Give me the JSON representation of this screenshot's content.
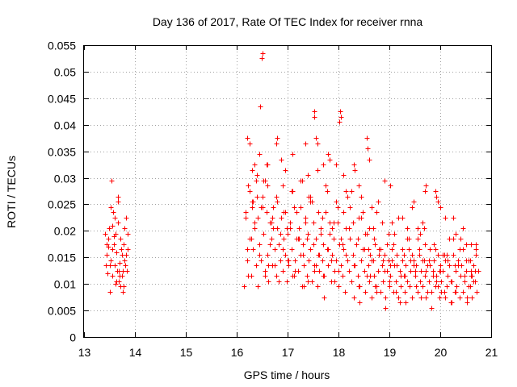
{
  "chart_data": {
    "type": "scatter",
    "title": "Day 136 of 2017, Rate Of TEC Index for receiver rnna",
    "xlabel": "GPS time / hours",
    "ylabel": "ROTI / TECUs",
    "xlim": [
      13,
      21
    ],
    "ylim": [
      0,
      0.055
    ],
    "xticks": [
      13,
      14,
      15,
      16,
      17,
      18,
      19,
      20,
      21
    ],
    "xtick_labels": [
      "13",
      "14",
      "15",
      "16",
      "17",
      "18",
      "19",
      "20",
      "21"
    ],
    "yticks": [
      0,
      0.005,
      0.01,
      0.015,
      0.02,
      0.025,
      0.03,
      0.035,
      0.04,
      0.045,
      0.05,
      0.055
    ],
    "ytick_labels": [
      "0",
      "0.005",
      "0.01",
      "0.015",
      "0.02",
      "0.025",
      "0.03",
      "0.035",
      "0.04",
      "0.045",
      "0.05",
      "0.055"
    ],
    "grid": true,
    "marker": "+",
    "color": "#ff0000",
    "series": [
      {
        "name": "rnna",
        "x": [
          13.42,
          13.44,
          13.46,
          13.48,
          13.5,
          13.52,
          13.54,
          13.55,
          13.56,
          13.58,
          13.6,
          13.61,
          13.62,
          13.64,
          13.65,
          13.66,
          13.68,
          13.7,
          13.71,
          13.72,
          13.74,
          13.75,
          13.76,
          13.78,
          13.8,
          13.82,
          13.84,
          13.86,
          13.45,
          13.53,
          13.57,
          13.63,
          13.67,
          13.73,
          13.77,
          13.81,
          13.85,
          13.49,
          13.59,
          13.69,
          13.79,
          13.47,
          13.51,
          13.55,
          13.62,
          13.7,
          13.76,
          13.83,
          13.43,
          13.66,
          16.15,
          16.18,
          16.2,
          16.22,
          16.25,
          16.28,
          16.3,
          16.32,
          16.35,
          16.38,
          16.4,
          16.42,
          16.45,
          16.48,
          16.5,
          16.52,
          16.55,
          16.58,
          16.6,
          16.62,
          16.65,
          16.68,
          16.7,
          16.72,
          16.75,
          16.78,
          16.8,
          16.82,
          16.85,
          16.88,
          16.9,
          16.92,
          16.95,
          16.98,
          17.0,
          17.02,
          17.05,
          17.08,
          17.1,
          17.12,
          17.15,
          17.18,
          17.2,
          17.22,
          17.25,
          17.28,
          17.3,
          17.32,
          17.35,
          17.38,
          17.4,
          17.42,
          17.45,
          17.48,
          17.5,
          17.52,
          17.55,
          17.58,
          17.6,
          17.62,
          17.65,
          17.68,
          17.7,
          17.72,
          17.75,
          17.78,
          17.8,
          17.82,
          17.85,
          17.88,
          17.9,
          17.92,
          17.95,
          17.98,
          18.0,
          18.02,
          18.05,
          18.08,
          18.1,
          18.12,
          18.15,
          18.18,
          18.2,
          18.22,
          18.25,
          18.28,
          18.3,
          18.32,
          18.35,
          18.38,
          18.4,
          18.42,
          18.45,
          18.48,
          18.5,
          18.52,
          18.55,
          18.58,
          18.6,
          18.62,
          18.65,
          18.68,
          18.7,
          18.72,
          18.75,
          18.78,
          18.8,
          18.82,
          18.85,
          18.88,
          18.9,
          18.92,
          18.95,
          18.98,
          19.0,
          19.02,
          19.05,
          19.08,
          19.1,
          19.12,
          19.15,
          19.18,
          19.2,
          19.22,
          19.25,
          19.28,
          19.3,
          19.32,
          19.35,
          19.38,
          19.4,
          19.42,
          19.45,
          19.48,
          19.5,
          19.52,
          19.55,
          19.58,
          19.6,
          19.62,
          19.65,
          19.68,
          19.7,
          19.72,
          19.75,
          19.78,
          19.8,
          19.82,
          19.85,
          19.88,
          19.9,
          19.92,
          19.95,
          19.98,
          20.0,
          20.02,
          20.05,
          20.08,
          20.1,
          20.12,
          20.15,
          20.18,
          20.2,
          20.22,
          20.25,
          20.28,
          20.3,
          20.32,
          20.35,
          20.38,
          20.4,
          20.42,
          20.45,
          20.48,
          20.5,
          20.52,
          20.55,
          20.58,
          20.6,
          20.62,
          20.65,
          20.68,
          20.7,
          20.72,
          20.75,
          16.2,
          16.25,
          16.3,
          16.35,
          16.4,
          16.45,
          16.5,
          16.55,
          16.6,
          16.65,
          16.7,
          16.75,
          16.8,
          16.85,
          16.9,
          16.95,
          17.0,
          17.05,
          17.1,
          17.15,
          17.2,
          17.25,
          17.3,
          17.35,
          17.4,
          17.45,
          17.5,
          17.55,
          17.6,
          17.65,
          17.7,
          17.75,
          17.8,
          17.85,
          17.9,
          17.95,
          18.0,
          18.05,
          18.1,
          18.15,
          18.2,
          18.25,
          18.3,
          18.35,
          18.4,
          18.45,
          18.5,
          18.55,
          18.6,
          18.65,
          18.7,
          18.75,
          18.8,
          18.85,
          18.9,
          18.95,
          19.0,
          19.05,
          19.1,
          19.15,
          19.2,
          19.25,
          19.3,
          19.35,
          19.4,
          19.45,
          19.5,
          19.55,
          19.6,
          19.65,
          19.7,
          19.75,
          19.8,
          19.85,
          19.9,
          19.95,
          20.0,
          20.05,
          20.1,
          20.15,
          20.2,
          20.25,
          20.3,
          20.35,
          20.4,
          20.45,
          20.5,
          20.55,
          20.6,
          20.65,
          20.7,
          16.22,
          16.32,
          16.42,
          16.52,
          16.62,
          16.72,
          16.82,
          16.92,
          17.02,
          17.12,
          17.22,
          17.32,
          17.42,
          17.52,
          17.62,
          17.72,
          17.82,
          17.92,
          18.02,
          18.12,
          18.22,
          18.32,
          18.42,
          18.52,
          18.62,
          18.72,
          18.82,
          18.92,
          19.02,
          19.12,
          19.22,
          19.32,
          19.42,
          19.52,
          19.62,
          19.72,
          19.82,
          19.92,
          20.02,
          20.12,
          20.22,
          20.32,
          20.42,
          20.52,
          20.62,
          20.72,
          16.18,
          16.28,
          16.38,
          16.48,
          16.58,
          16.68,
          16.78,
          16.88,
          16.98,
          17.08,
          17.18,
          17.28,
          17.38,
          17.48,
          17.58,
          17.68,
          17.78,
          17.88,
          17.98,
          18.08,
          18.18,
          18.28,
          18.38,
          18.48,
          18.58,
          18.68,
          18.78,
          18.88,
          18.98,
          19.08,
          19.18,
          19.28,
          19.38,
          19.48,
          19.58,
          19.68,
          19.78,
          19.88,
          19.98,
          20.08,
          20.18,
          20.28,
          20.38,
          20.48,
          20.58,
          20.68,
          16.5,
          16.49,
          16.46,
          17.52,
          17.53,
          18.03,
          18.05,
          18.01,
          16.2,
          16.25,
          16.78,
          16.8,
          17.35,
          17.55,
          17.58,
          17.8,
          17.82,
          18.55,
          18.57,
          18.6,
          18.3,
          18.32,
          18.9,
          19.02,
          19.45,
          19.47,
          19.7,
          19.72,
          19.9,
          19.92,
          19.95,
          20.25,
          20.45,
          20.5,
          16.3,
          16.35,
          16.4,
          16.45,
          16.55,
          16.6,
          16.9,
          16.95,
          17.1,
          17.25,
          17.4,
          17.45,
          17.7,
          17.75,
          17.95,
          18.1,
          18.15,
          18.4,
          18.45,
          18.65,
          18.75,
          19.05,
          19.25,
          19.35,
          19.55,
          19.6,
          19.65,
          20.0,
          20.1,
          20.3,
          20.4,
          20.6,
          20.7
        ],
        "y": [
          0.0195,
          0.0155,
          0.012,
          0.017,
          0.0085,
          0.0245,
          0.0295,
          0.021,
          0.0115,
          0.019,
          0.0135,
          0.0225,
          0.01,
          0.016,
          0.0125,
          0.0265,
          0.0105,
          0.014,
          0.0185,
          0.0095,
          0.0115,
          0.0155,
          0.0085,
          0.0175,
          0.0205,
          0.0225,
          0.0125,
          0.0165,
          0.0175,
          0.0145,
          0.0235,
          0.0105,
          0.0255,
          0.0165,
          0.0095,
          0.0135,
          0.0195,
          0.0205,
          0.0175,
          0.0125,
          0.0145,
          0.0185,
          0.0135,
          0.0165,
          0.0195,
          0.0115,
          0.0125,
          0.0155,
          0.0135,
          0.0215,
          0.0095,
          0.0235,
          0.0145,
          0.0285,
          0.0185,
          0.0115,
          0.0255,
          0.0165,
          0.0205,
          0.0135,
          0.0305,
          0.0225,
          0.0175,
          0.0145,
          0.0265,
          0.0195,
          0.0125,
          0.0235,
          0.0155,
          0.0105,
          0.0215,
          0.0185,
          0.0135,
          0.0245,
          0.0165,
          0.0115,
          0.0205,
          0.0175,
          0.0145,
          0.0225,
          0.0125,
          0.0185,
          0.0155,
          0.0105,
          0.0195,
          0.0135,
          0.0215,
          0.0165,
          0.0115,
          0.0245,
          0.0145,
          0.0185,
          0.0125,
          0.0205,
          0.0155,
          0.0095,
          0.0175,
          0.0135,
          0.0225,
          0.0115,
          0.0195,
          0.0145,
          0.0165,
          0.0105,
          0.0215,
          0.0135,
          0.0185,
          0.0095,
          0.0155,
          0.0125,
          0.0205,
          0.0145,
          0.0175,
          0.0115,
          0.0235,
          0.0165,
          0.0135,
          0.0195,
          0.0105,
          0.0155,
          0.0185,
          0.0125,
          0.0145,
          0.0215,
          0.0095,
          0.0175,
          0.0135,
          0.0115,
          0.0165,
          0.0085,
          0.0205,
          0.0145,
          0.0125,
          0.0185,
          0.0105,
          0.0155,
          0.0075,
          0.0135,
          0.0175,
          0.0115,
          0.0225,
          0.0095,
          0.0145,
          0.0165,
          0.0125,
          0.0085,
          0.0195,
          0.0135,
          0.0105,
          0.0155,
          0.0075,
          0.0145,
          0.0115,
          0.0175,
          0.0095,
          0.0125,
          0.0165,
          0.0085,
          0.0135,
          0.0105,
          0.0155,
          0.0075,
          0.0125,
          0.0145,
          0.0095,
          0.0115,
          0.0165,
          0.0085,
          0.0135,
          0.0105,
          0.0155,
          0.0075,
          0.0125,
          0.0095,
          0.0145,
          0.0115,
          0.0085,
          0.0135,
          0.0105,
          0.0165,
          0.0095,
          0.0125,
          0.0075,
          0.0145,
          0.0115,
          0.0135,
          0.0085,
          0.0155,
          0.0105,
          0.0125,
          0.0095,
          0.0145,
          0.0115,
          0.0075,
          0.0135,
          0.0105,
          0.0165,
          0.0085,
          0.0125,
          0.0145,
          0.0095,
          0.0115,
          0.0155,
          0.0075,
          0.0135,
          0.0105,
          0.0125,
          0.0085,
          0.0145,
          0.0095,
          0.0115,
          0.0135,
          0.0065,
          0.0105,
          0.0155,
          0.0085,
          0.0125,
          0.0095,
          0.0145,
          0.0075,
          0.0115,
          0.0135,
          0.0085,
          0.0105,
          0.0125,
          0.0065,
          0.0145,
          0.0095,
          0.0115,
          0.0075,
          0.0135,
          0.0105,
          0.0155,
          0.0085,
          0.0125,
          0.0165,
          0.0275,
          0.0315,
          0.0215,
          0.0265,
          0.0155,
          0.0245,
          0.0115,
          0.0285,
          0.0175,
          0.0225,
          0.0135,
          0.0255,
          0.0195,
          0.0165,
          0.0235,
          0.0145,
          0.0205,
          0.0275,
          0.0125,
          0.0185,
          0.0245,
          0.0155,
          0.0215,
          0.0105,
          0.0265,
          0.0175,
          0.0135,
          0.0235,
          0.0195,
          0.0115,
          0.0285,
          0.0165,
          0.0145,
          0.0215,
          0.0255,
          0.0125,
          0.0185,
          0.0235,
          0.0155,
          0.0205,
          0.0275,
          0.0135,
          0.0175,
          0.0095,
          0.0225,
          0.0165,
          0.0115,
          0.0205,
          0.0145,
          0.0185,
          0.0085,
          0.0155,
          0.0215,
          0.0125,
          0.0175,
          0.0105,
          0.0145,
          0.0195,
          0.0135,
          0.0065,
          0.0165,
          0.0115,
          0.0185,
          0.0095,
          0.0155,
          0.0125,
          0.0205,
          0.0105,
          0.0145,
          0.0175,
          0.0085,
          0.0135,
          0.0115,
          0.0165,
          0.0095,
          0.0125,
          0.0155,
          0.0075,
          0.0145,
          0.0105,
          0.0185,
          0.0085,
          0.0135,
          0.0115,
          0.0165,
          0.0145,
          0.0095,
          0.0125,
          0.0105,
          0.0175,
          0.0115,
          0.0255,
          0.0095,
          0.0295,
          0.0135,
          0.0205,
          0.0105,
          0.0235,
          0.0145,
          0.0115,
          0.0185,
          0.0095,
          0.0265,
          0.0125,
          0.0155,
          0.0075,
          0.0215,
          0.0105,
          0.0175,
          0.0085,
          0.0245,
          0.0135,
          0.0065,
          0.0195,
          0.0115,
          0.0095,
          0.0165,
          0.0055,
          0.0135,
          0.0085,
          0.0115,
          0.0065,
          0.0145,
          0.0095,
          0.0075,
          0.0125,
          0.0055,
          0.0105,
          0.0085,
          0.0155,
          0.0065,
          0.0095,
          0.0135,
          0.0075,
          0.0115,
          0.0085,
          0.0225,
          0.0185,
          0.0295,
          0.0245,
          0.0325,
          0.0215,
          0.0265,
          0.0335,
          0.0205,
          0.0275,
          0.0235,
          0.0295,
          0.0185,
          0.0255,
          0.0315,
          0.0225,
          0.0275,
          0.0205,
          0.0245,
          0.0175,
          0.0265,
          0.0215,
          0.0185,
          0.0235,
          0.0165,
          0.0205,
          0.0255,
          0.0145,
          0.0195,
          0.0175,
          0.0225,
          0.0155,
          0.0185,
          0.0135,
          0.0165,
          0.0205,
          0.0145,
          0.0175,
          0.0125,
          0.0155,
          0.0185,
          0.0135,
          0.0165,
          0.0115,
          0.0145,
          0.0125,
          0.0535,
          0.0525,
          0.0435,
          0.0425,
          0.0415,
          0.0425,
          0.0415,
          0.0405,
          0.0375,
          0.0365,
          0.0365,
          0.0375,
          0.0365,
          0.0375,
          0.0365,
          0.0345,
          0.0335,
          0.0375,
          0.0355,
          0.0335,
          0.0325,
          0.0315,
          0.0295,
          0.0285,
          0.0245,
          0.0255,
          0.0275,
          0.0285,
          0.0275,
          0.0265,
          0.0255,
          0.0225,
          0.0205,
          0.0175,
          0.0245,
          0.0325,
          0.0305,
          0.0345,
          0.0295,
          0.0325,
          0.0285,
          0.0315,
          0.0345,
          0.0295,
          0.0305,
          0.0255,
          0.0325,
          0.0285,
          0.0325,
          0.0305,
          0.0275,
          0.0285,
          0.0265,
          0.0245,
          0.0235,
          0.0215,
          0.0225,
          0.0205,
          0.0185,
          0.0195,
          0.0215,
          0.0245,
          0.0225,
          0.0195,
          0.0185,
          0.0175,
          0.0165
        ]
      }
    ]
  }
}
